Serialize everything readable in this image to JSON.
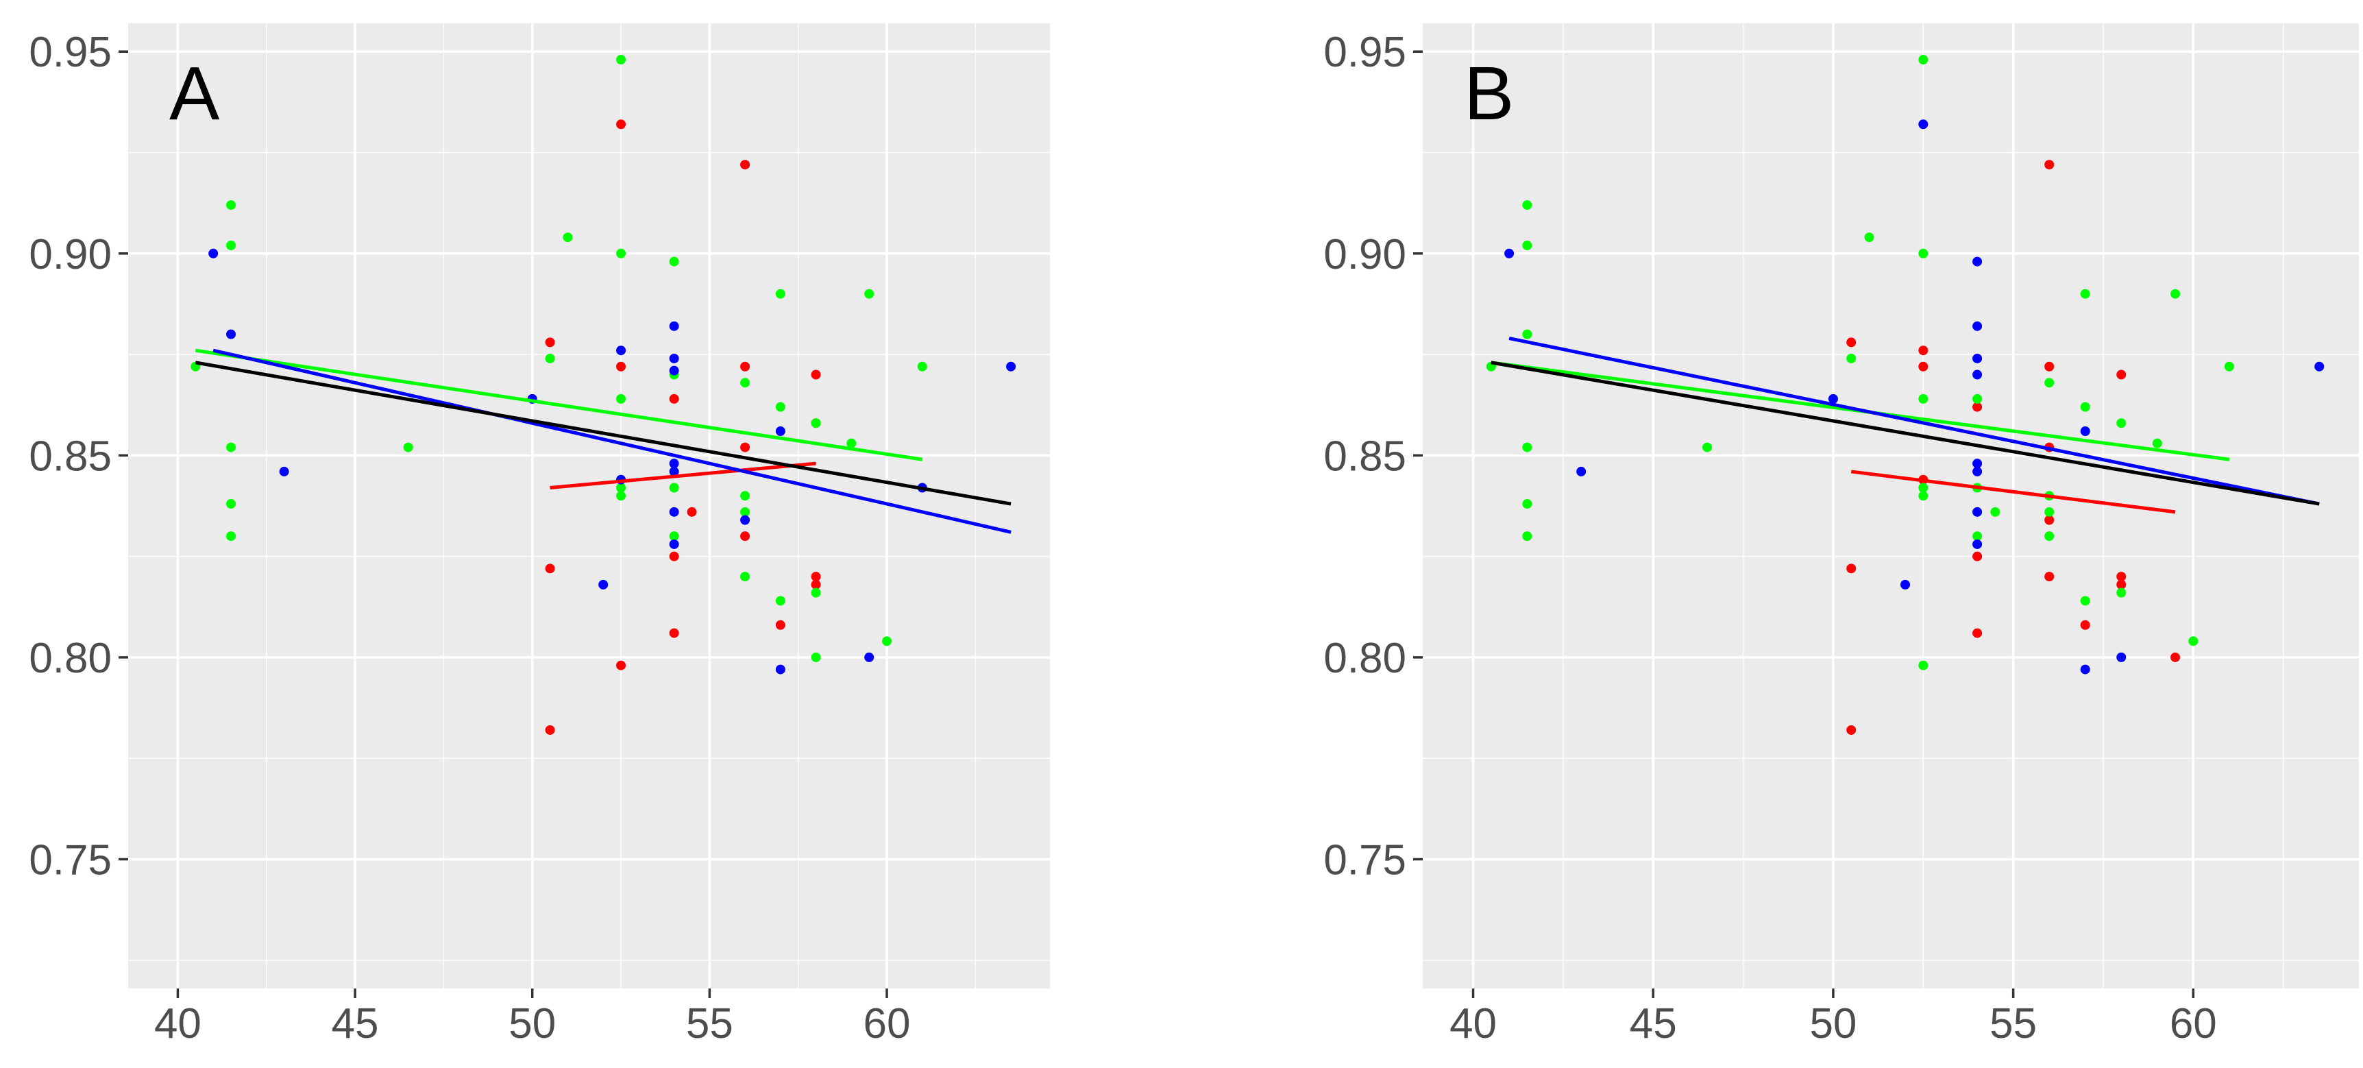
{
  "chart_data": [
    {
      "type": "scatter",
      "panel_label": "A",
      "xlabel": "",
      "ylabel": "",
      "xlim": [
        38.6,
        64.6
      ],
      "ylim": [
        0.718,
        0.957
      ],
      "x_ticks": [
        40,
        45,
        50,
        55,
        60
      ],
      "x_tick_labels": [
        "40",
        "45",
        "50",
        "55",
        "60"
      ],
      "y_ticks": [
        0.75,
        0.8,
        0.85,
        0.9,
        0.95
      ],
      "y_tick_labels": [
        "0.75",
        "0.80",
        "0.85",
        "0.90",
        "0.95"
      ],
      "grid": true,
      "background": "#ebebeb",
      "series": [
        {
          "name": "red",
          "color": "#ff0000",
          "points": [
            [
              50.5,
              0.878
            ],
            [
              50.5,
              0.822
            ],
            [
              50.5,
              0.782
            ],
            [
              52.5,
              0.932
            ],
            [
              52.5,
              0.872
            ],
            [
              52.5,
              0.798
            ],
            [
              54,
              0.864
            ],
            [
              54,
              0.825
            ],
            [
              54,
              0.806
            ],
            [
              54.5,
              0.836
            ],
            [
              56,
              0.922
            ],
            [
              56,
              0.872
            ],
            [
              56,
              0.852
            ],
            [
              56,
              0.83
            ],
            [
              57,
              0.808
            ],
            [
              58,
              0.87
            ],
            [
              58,
              0.858
            ],
            [
              58,
              0.82
            ],
            [
              58,
              0.818
            ]
          ],
          "fit": [
            [
              50.5,
              0.842
            ],
            [
              58,
              0.848
            ]
          ]
        },
        {
          "name": "green",
          "color": "#00ff00",
          "points": [
            [
              40.5,
              0.872
            ],
            [
              41.5,
              0.912
            ],
            [
              41.5,
              0.902
            ],
            [
              41.5,
              0.852
            ],
            [
              41.5,
              0.838
            ],
            [
              41.5,
              0.83
            ],
            [
              46.5,
              0.852
            ],
            [
              50.5,
              0.874
            ],
            [
              51,
              0.904
            ],
            [
              52.5,
              0.948
            ],
            [
              52.5,
              0.9
            ],
            [
              52.5,
              0.864
            ],
            [
              52.5,
              0.842
            ],
            [
              52.5,
              0.84
            ],
            [
              54,
              0.898
            ],
            [
              54,
              0.87
            ],
            [
              54,
              0.842
            ],
            [
              54,
              0.83
            ],
            [
              56,
              0.868
            ],
            [
              56,
              0.84
            ],
            [
              56,
              0.836
            ],
            [
              56,
              0.82
            ],
            [
              57,
              0.89
            ],
            [
              57,
              0.862
            ],
            [
              57,
              0.814
            ],
            [
              58,
              0.858
            ],
            [
              58,
              0.816
            ],
            [
              58,
              0.8
            ],
            [
              59,
              0.853
            ],
            [
              59.5,
              0.89
            ],
            [
              60,
              0.804
            ],
            [
              61,
              0.872
            ]
          ],
          "fit": [
            [
              40.5,
              0.876
            ],
            [
              61,
              0.849
            ]
          ]
        },
        {
          "name": "blue",
          "color": "#0000ff",
          "points": [
            [
              41,
              0.9
            ],
            [
              41.5,
              0.88
            ],
            [
              43,
              0.846
            ],
            [
              50,
              0.864
            ],
            [
              52,
              0.818
            ],
            [
              52.5,
              0.876
            ],
            [
              52.5,
              0.844
            ],
            [
              54,
              0.882
            ],
            [
              54,
              0.874
            ],
            [
              54,
              0.871
            ],
            [
              54,
              0.848
            ],
            [
              54,
              0.846
            ],
            [
              54,
              0.836
            ],
            [
              54,
              0.828
            ],
            [
              56,
              0.834
            ],
            [
              57,
              0.856
            ],
            [
              57,
              0.797
            ],
            [
              59.5,
              0.8
            ],
            [
              61,
              0.842
            ],
            [
              63.5,
              0.872
            ]
          ],
          "fit": [
            [
              41,
              0.876
            ],
            [
              63.5,
              0.831
            ]
          ]
        },
        {
          "name": "black",
          "color": "#000000",
          "points": [],
          "fit": [
            [
              40.5,
              0.873
            ],
            [
              63.5,
              0.838
            ]
          ]
        }
      ]
    },
    {
      "type": "scatter",
      "panel_label": "B",
      "xlabel": "",
      "ylabel": "",
      "xlim": [
        38.6,
        64.6
      ],
      "ylim": [
        0.718,
        0.957
      ],
      "x_ticks": [
        40,
        45,
        50,
        55,
        60
      ],
      "x_tick_labels": [
        "40",
        "45",
        "50",
        "55",
        "60"
      ],
      "y_ticks": [
        0.75,
        0.8,
        0.85,
        0.9,
        0.95
      ],
      "y_tick_labels": [
        "0.75",
        "0.80",
        "0.85",
        "0.90",
        "0.95"
      ],
      "grid": true,
      "background": "#ebebeb",
      "series": [
        {
          "name": "red",
          "color": "#ff0000",
          "points": [
            [
              50.5,
              0.878
            ],
            [
              50.5,
              0.822
            ],
            [
              50.5,
              0.782
            ],
            [
              52.5,
              0.876
            ],
            [
              52.5,
              0.872
            ],
            [
              52.5,
              0.844
            ],
            [
              54,
              0.862
            ],
            [
              54,
              0.825
            ],
            [
              54,
              0.806
            ],
            [
              56,
              0.922
            ],
            [
              56,
              0.872
            ],
            [
              56,
              0.852
            ],
            [
              56,
              0.834
            ],
            [
              56,
              0.82
            ],
            [
              57,
              0.808
            ],
            [
              58,
              0.87
            ],
            [
              58,
              0.82
            ],
            [
              58,
              0.818
            ],
            [
              59.5,
              0.8
            ]
          ],
          "fit": [
            [
              50.5,
              0.846
            ],
            [
              59.5,
              0.836
            ]
          ]
        },
        {
          "name": "green",
          "color": "#00ff00",
          "points": [
            [
              40.5,
              0.872
            ],
            [
              41.5,
              0.912
            ],
            [
              41.5,
              0.902
            ],
            [
              41.5,
              0.88
            ],
            [
              41.5,
              0.852
            ],
            [
              41.5,
              0.838
            ],
            [
              41.5,
              0.83
            ],
            [
              46.5,
              0.852
            ],
            [
              50.5,
              0.874
            ],
            [
              51,
              0.904
            ],
            [
              52.5,
              0.948
            ],
            [
              52.5,
              0.9
            ],
            [
              52.5,
              0.864
            ],
            [
              52.5,
              0.842
            ],
            [
              52.5,
              0.84
            ],
            [
              52.5,
              0.798
            ],
            [
              54,
              0.864
            ],
            [
              54,
              0.842
            ],
            [
              54,
              0.83
            ],
            [
              54.5,
              0.836
            ],
            [
              56,
              0.868
            ],
            [
              56,
              0.84
            ],
            [
              56,
              0.836
            ],
            [
              56,
              0.83
            ],
            [
              57,
              0.89
            ],
            [
              57,
              0.862
            ],
            [
              57,
              0.814
            ],
            [
              58,
              0.858
            ],
            [
              58,
              0.816
            ],
            [
              59,
              0.853
            ],
            [
              59.5,
              0.89
            ],
            [
              60,
              0.804
            ],
            [
              61,
              0.872
            ]
          ],
          "fit": [
            [
              40.5,
              0.873
            ],
            [
              61,
              0.849
            ]
          ]
        },
        {
          "name": "blue",
          "color": "#0000ff",
          "points": [
            [
              41,
              0.9
            ],
            [
              43,
              0.846
            ],
            [
              50,
              0.864
            ],
            [
              52,
              0.818
            ],
            [
              52.5,
              0.932
            ],
            [
              54,
              0.898
            ],
            [
              54,
              0.882
            ],
            [
              54,
              0.874
            ],
            [
              54,
              0.87
            ],
            [
              54,
              0.848
            ],
            [
              54,
              0.846
            ],
            [
              54,
              0.836
            ],
            [
              54,
              0.828
            ],
            [
              57,
              0.856
            ],
            [
              57,
              0.797
            ],
            [
              58,
              0.8
            ],
            [
              63.5,
              0.872
            ]
          ],
          "fit": [
            [
              41,
              0.879
            ],
            [
              63.5,
              0.838
            ]
          ]
        },
        {
          "name": "black",
          "color": "#000000",
          "points": [],
          "fit": [
            [
              40.5,
              0.873
            ],
            [
              63.5,
              0.838
            ]
          ]
        }
      ]
    }
  ]
}
